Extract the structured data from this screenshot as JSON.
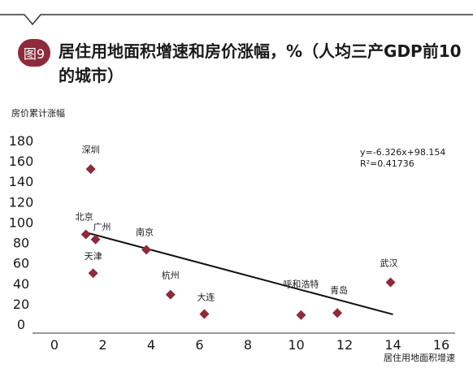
{
  "figure": {
    "badge": "图9",
    "title": "居住用地面积增速和房价涨幅，%（人均三产GDP前10的城市）"
  },
  "chart_data": {
    "type": "scatter",
    "title": "居住用地面积增速和房价涨幅，%（人均三产GDP前10的城市）",
    "xlabel": "居住用地面积增速",
    "ylabel": "房价累计涨幅",
    "xlim": [
      0,
      16
    ],
    "ylim": [
      0,
      180
    ],
    "xticks": [
      0,
      2,
      4,
      6,
      8,
      10,
      12,
      14,
      16
    ],
    "yticks": [
      0,
      20,
      40,
      60,
      80,
      100,
      120,
      140,
      160,
      180
    ],
    "grid": false,
    "marker_color": "#8e2b3b",
    "points": [
      {
        "label": "深圳",
        "x": 1.5,
        "y": 152
      },
      {
        "label": "北京",
        "x": 1.3,
        "y": 88
      },
      {
        "label": "广州",
        "x": 1.7,
        "y": 83
      },
      {
        "label": "南京",
        "x": 3.8,
        "y": 73
      },
      {
        "label": "天津",
        "x": 1.6,
        "y": 50
      },
      {
        "label": "杭州",
        "x": 4.8,
        "y": 29
      },
      {
        "label": "大连",
        "x": 6.2,
        "y": 10
      },
      {
        "label": "呼和浩特",
        "x": 10.2,
        "y": 9
      },
      {
        "label": "青岛",
        "x": 11.7,
        "y": 11
      },
      {
        "label": "武汉",
        "x": 13.9,
        "y": 41
      }
    ],
    "trendline": {
      "slope": -6.326,
      "intercept": 98.154,
      "x_range": [
        1.3,
        14
      ],
      "equation": "y=-6.326x+98.154",
      "r2": "R²=0.41736"
    }
  }
}
